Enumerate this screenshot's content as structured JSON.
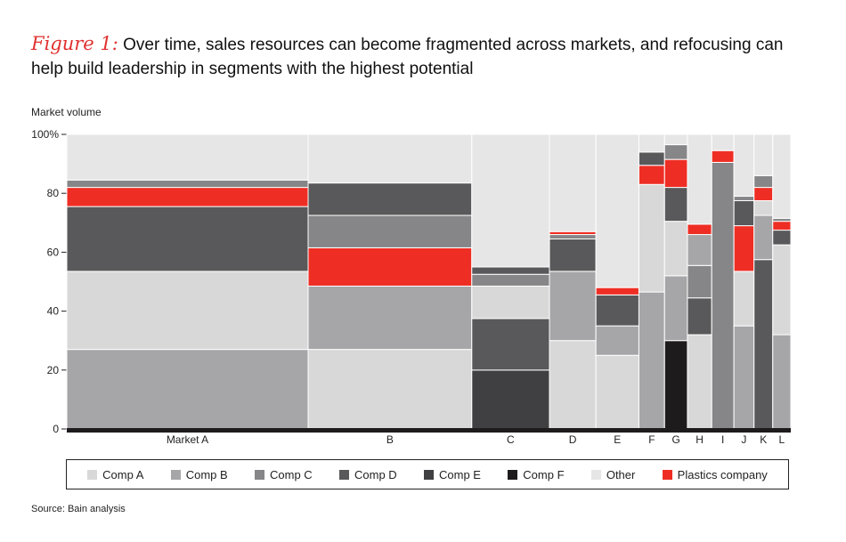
{
  "figure_label": "Figure 1:",
  "title": "Over time, sales resources can become fragmented across markets, and refocusing can help build leadership in segments with the highest potential",
  "source": "Source: Bain analysis",
  "colors": {
    "Comp A": "#d8d8d8",
    "Comp B": "#a6a6a8",
    "Comp C": "#868688",
    "Comp D": "#59595b",
    "Comp E": "#404042",
    "Comp F": "#1e1b1c",
    "Other": "#e6e6e6",
    "Plastics company": "#ee2e24"
  },
  "chart_data": {
    "type": "marimekko",
    "ylabel": "Market volume",
    "ylim": [
      0,
      100
    ],
    "yticks": [
      "0",
      "20",
      "40",
      "60",
      "80",
      "100%"
    ],
    "legend_placement": "bottom",
    "series_order": [
      "Comp A",
      "Comp B",
      "Comp C",
      "Comp D",
      "Comp E",
      "Comp F",
      "Other",
      "Plastics company"
    ],
    "markets": [
      {
        "label": "Market A",
        "width_share": 34.8,
        "segments": [
          {
            "name": "Comp B",
            "start": 0,
            "end": 27
          },
          {
            "name": "Comp A",
            "start": 27,
            "end": 53.5
          },
          {
            "name": "Comp D",
            "start": 53.5,
            "end": 75.5
          },
          {
            "name": "Plastics company",
            "start": 75.5,
            "end": 82
          },
          {
            "name": "Comp C",
            "start": 82,
            "end": 84.5
          },
          {
            "name": "Other",
            "start": 84.5,
            "end": 100
          }
        ]
      },
      {
        "label": "B",
        "width_share": 23.6,
        "segments": [
          {
            "name": "Comp A",
            "start": 0,
            "end": 27
          },
          {
            "name": "Comp B",
            "start": 27,
            "end": 48.5
          },
          {
            "name": "Plastics company",
            "start": 48.5,
            "end": 61.5
          },
          {
            "name": "Comp C",
            "start": 61.5,
            "end": 72.5
          },
          {
            "name": "Comp D",
            "start": 72.5,
            "end": 83.5
          },
          {
            "name": "Other",
            "start": 83.5,
            "end": 100
          }
        ]
      },
      {
        "label": "C",
        "width_share": 11.2,
        "segments": [
          {
            "name": "Comp E",
            "start": 0,
            "end": 20
          },
          {
            "name": "Comp D",
            "start": 20,
            "end": 37.5
          },
          {
            "name": "Comp A",
            "start": 37.5,
            "end": 48.5
          },
          {
            "name": "Comp C",
            "start": 48.5,
            "end": 52.5
          },
          {
            "name": "Comp D",
            "start": 52.5,
            "end": 55
          },
          {
            "name": "Other",
            "start": 55,
            "end": 100
          }
        ]
      },
      {
        "label": "D",
        "width_share": 6.7,
        "segments": [
          {
            "name": "Comp A",
            "start": 0,
            "end": 30
          },
          {
            "name": "Comp B",
            "start": 30,
            "end": 53.5
          },
          {
            "name": "Comp D",
            "start": 53.5,
            "end": 64.5
          },
          {
            "name": "Comp C",
            "start": 64.5,
            "end": 66
          },
          {
            "name": "Plastics company",
            "start": 66,
            "end": 67
          },
          {
            "name": "Other",
            "start": 67,
            "end": 100
          }
        ]
      },
      {
        "label": "E",
        "width_share": 6.2,
        "segments": [
          {
            "name": "Comp A",
            "start": 0,
            "end": 25
          },
          {
            "name": "Comp B",
            "start": 25,
            "end": 35
          },
          {
            "name": "Comp D",
            "start": 35,
            "end": 45.5
          },
          {
            "name": "Plastics company",
            "start": 45.5,
            "end": 48
          },
          {
            "name": "Other",
            "start": 48,
            "end": 100
          }
        ]
      },
      {
        "label": "F",
        "width_share": 3.7,
        "segments": [
          {
            "name": "Comp B",
            "start": 0,
            "end": 46.5
          },
          {
            "name": "Comp A",
            "start": 46.5,
            "end": 83
          },
          {
            "name": "Plastics company",
            "start": 83,
            "end": 89.5
          },
          {
            "name": "Comp D",
            "start": 89.5,
            "end": 94
          },
          {
            "name": "Other",
            "start": 94,
            "end": 100
          }
        ]
      },
      {
        "label": "G",
        "width_share": 3.3,
        "segments": [
          {
            "name": "Comp F",
            "start": 0,
            "end": 30
          },
          {
            "name": "Comp B",
            "start": 30,
            "end": 52
          },
          {
            "name": "Comp A",
            "start": 52,
            "end": 70.5
          },
          {
            "name": "Comp D",
            "start": 70.5,
            "end": 82
          },
          {
            "name": "Plastics company",
            "start": 82,
            "end": 91.5
          },
          {
            "name": "Comp C",
            "start": 91.5,
            "end": 96.5
          },
          {
            "name": "Other",
            "start": 96.5,
            "end": 100
          }
        ]
      },
      {
        "label": "H",
        "width_share": 3.5,
        "segments": [
          {
            "name": "Comp A",
            "start": 0,
            "end": 32
          },
          {
            "name": "Comp D",
            "start": 32,
            "end": 44.5
          },
          {
            "name": "Comp C",
            "start": 44.5,
            "end": 55.5
          },
          {
            "name": "Comp B",
            "start": 55.5,
            "end": 66
          },
          {
            "name": "Plastics company",
            "start": 66,
            "end": 69.5
          },
          {
            "name": "Other",
            "start": 69.5,
            "end": 100
          }
        ]
      },
      {
        "label": "I",
        "width_share": 3.2,
        "segments": [
          {
            "name": "Comp C",
            "start": 0,
            "end": 90.5
          },
          {
            "name": "Plastics company",
            "start": 90.5,
            "end": 94.5
          },
          {
            "name": "Other",
            "start": 94.5,
            "end": 100
          }
        ]
      },
      {
        "label": "J",
        "width_share": 2.9,
        "segments": [
          {
            "name": "Comp B",
            "start": 0,
            "end": 35
          },
          {
            "name": "Comp A",
            "start": 35,
            "end": 53.5
          },
          {
            "name": "Plastics company",
            "start": 53.5,
            "end": 69
          },
          {
            "name": "Comp D",
            "start": 69,
            "end": 77.5
          },
          {
            "name": "Comp C",
            "start": 77.5,
            "end": 79
          },
          {
            "name": "Other",
            "start": 79,
            "end": 100
          }
        ]
      },
      {
        "label": "K",
        "width_share": 2.7,
        "segments": [
          {
            "name": "Comp D",
            "start": 0,
            "end": 57.5
          },
          {
            "name": "Comp B",
            "start": 57.5,
            "end": 72.5
          },
          {
            "name": "Comp A",
            "start": 72.5,
            "end": 77.5
          },
          {
            "name": "Plastics company",
            "start": 77.5,
            "end": 82
          },
          {
            "name": "Comp C",
            "start": 82,
            "end": 86
          },
          {
            "name": "Other",
            "start": 86,
            "end": 100
          }
        ]
      },
      {
        "label": "L",
        "width_share": 2.6,
        "segments": [
          {
            "name": "Comp B",
            "start": 0,
            "end": 32
          },
          {
            "name": "Comp A",
            "start": 32,
            "end": 62.5
          },
          {
            "name": "Comp D",
            "start": 62.5,
            "end": 67.5
          },
          {
            "name": "Plastics company",
            "start": 67.5,
            "end": 70.5
          },
          {
            "name": "Comp C",
            "start": 70.5,
            "end": 71.5
          },
          {
            "name": "Other",
            "start": 71.5,
            "end": 100
          }
        ]
      }
    ]
  }
}
